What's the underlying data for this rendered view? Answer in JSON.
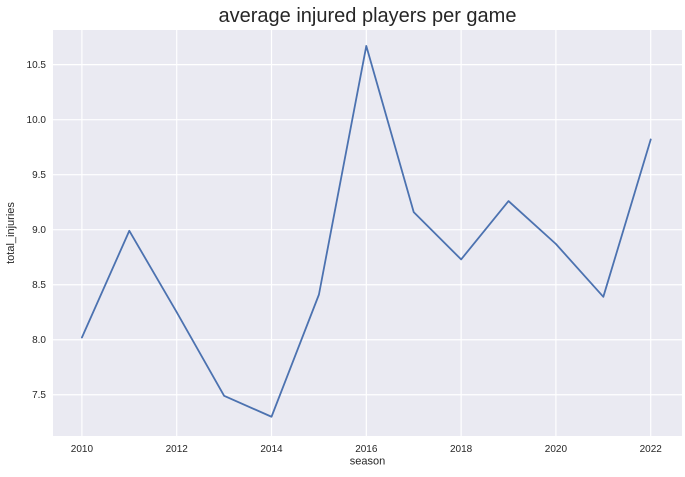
{
  "chart_data": {
    "type": "line",
    "title": "average injured players per game",
    "xlabel": "season",
    "ylabel": "total_injuries",
    "series": [
      {
        "name": "total_injuries",
        "x": [
          2010,
          2011,
          2012,
          2013,
          2014,
          2015,
          2016,
          2017,
          2018,
          2019,
          2020,
          2021,
          2022
        ],
        "y": [
          8.02,
          8.99,
          8.25,
          7.49,
          7.3,
          8.41,
          10.67,
          9.16,
          8.73,
          9.26,
          8.87,
          8.39,
          9.82
        ]
      }
    ],
    "xlim": [
      2009.39,
      2022.66
    ],
    "ylim": [
      7.125,
      10.815
    ],
    "x_tick_values": [
      2010,
      2012,
      2014,
      2016,
      2018,
      2020,
      2022
    ],
    "x_tick_labels": [
      "2010",
      "2012",
      "2014",
      "2016",
      "2018",
      "2020",
      "2022"
    ],
    "y_tick_values": [
      7.5,
      8.0,
      8.5,
      9.0,
      9.5,
      10.0,
      10.5
    ],
    "y_tick_labels": [
      "7.5",
      "8.0",
      "8.5",
      "9.0",
      "9.5",
      "10.0",
      "10.5"
    ],
    "grid": true,
    "legend": false,
    "style": "seaborn-darkgrid",
    "colors": {
      "line": "#4c72b0",
      "plot_background": "#eaeaf2",
      "gridline": "#ffffff",
      "figure_background": "#ffffff",
      "text": "#262626"
    }
  }
}
